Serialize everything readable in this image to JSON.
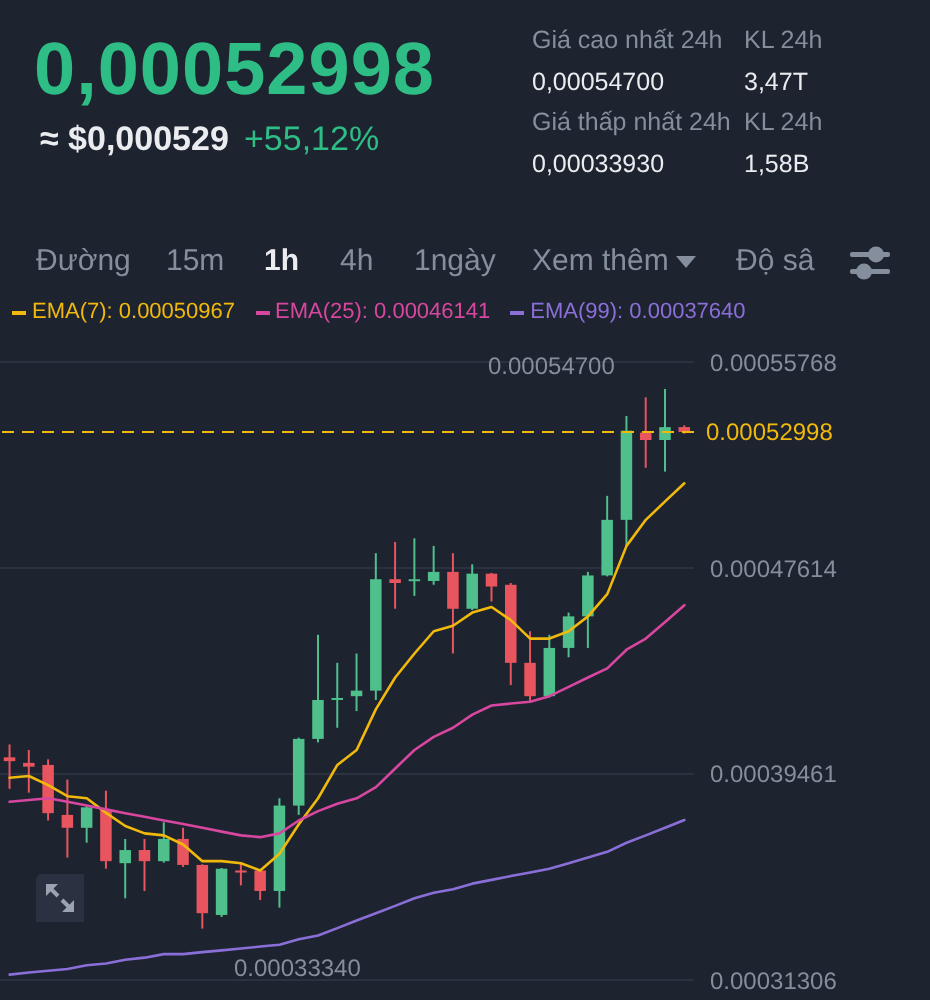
{
  "chart_data": {
    "type": "candlestick",
    "title": "0,00052998",
    "annotations": [
      "≈ $0,000529",
      "+55,12%",
      "Giá cao nhất 24h",
      "0,00054700",
      "KL 24h",
      "3,47T",
      "Giá thấp nhất 24h",
      "0,00033930",
      "KL 24h",
      "1,58B",
      "Đường",
      "15m",
      "1h",
      "4h",
      "1ngày",
      "Xem thêm",
      "Độ sâ",
      "0.00054700",
      "0.00033340"
    ],
    "categories": [
      null,
      null,
      null,
      null,
      null,
      null,
      null,
      null,
      null,
      null,
      null,
      null,
      null,
      null,
      null,
      null,
      null,
      null,
      null,
      null,
      null,
      null,
      null,
      null,
      null,
      null,
      null,
      null,
      null,
      null,
      null,
      null,
      null,
      null,
      null,
      null
    ],
    "ohlc": [
      [
        0.0004012,
        0.0004063,
        0.0003887,
        0.0003997
      ],
      [
        0.000399,
        0.0004041,
        0.0003872,
        0.0003975
      ],
      [
        0.0003982,
        0.0004004,
        0.0003762,
        0.0003791
      ],
      [
        0.0003784,
        0.0003924,
        0.0003615,
        0.0003733
      ],
      [
        0.0003733,
        0.0003821,
        0.0003674,
        0.0003814
      ],
      [
        0.0003806,
        0.000388,
        0.0003571,
        0.0003601
      ],
      [
        0.0003593,
        0.0003689,
        0.0003454,
        0.0003645
      ],
      [
        0.0003645,
        0.0003689,
        0.0003483,
        0.0003601
      ],
      [
        0.0003601,
        0.0003755,
        0.0003595,
        0.0003689
      ],
      [
        0.0003689,
        0.0003733,
        0.0003578,
        0.0003586
      ],
      [
        0.0003586,
        0.0003589,
        0.0003334,
        0.0003395
      ],
      [
        0.0003388,
        0.0003574,
        0.000338,
        0.0003571
      ],
      [
        0.0003564,
        0.0003593,
        0.0003505,
        0.0003556
      ],
      [
        0.0003564,
        0.0003568,
        0.0003447,
        0.0003483
      ],
      [
        0.0003483,
        0.000385,
        0.0003417,
        0.0003821
      ],
      [
        0.0003821,
        0.000409,
        0.0003784,
        0.0004085
      ],
      [
        0.0004085,
        0.0004497,
        0.0004071,
        0.0004239
      ],
      [
        0.0004239,
        0.0004386,
        0.0004129,
        0.0004247
      ],
      [
        0.0004254,
        0.0004423,
        0.0004195,
        0.0004276
      ],
      [
        0.0004276,
        0.000482,
        0.0004239,
        0.0004717
      ],
      [
        0.0004717,
        0.0004864,
        0.00046,
        0.0004702
      ],
      [
        0.000471,
        0.0004879,
        0.0004651,
        0.0004717
      ],
      [
        0.000471,
        0.0004849,
        0.0004695,
        0.0004746
      ],
      [
        0.0004746,
        0.000482,
        0.0004423,
        0.00046
      ],
      [
        0.00046,
        0.0004776,
        0.0004595,
        0.0004739
      ],
      [
        0.0004739,
        0.0004742,
        0.0004629,
        0.0004688
      ],
      [
        0.0004695,
        0.0004702,
        0.0004298,
        0.0004386
      ],
      [
        0.0004386,
        0.0004511,
        0.0004232,
        0.0004254
      ],
      [
        0.0004254,
        0.0004497,
        0.0004249,
        0.0004445
      ],
      [
        0.0004445,
        0.0004585,
        0.0004408,
        0.000457
      ],
      [
        0.000457,
        0.0004746,
        0.0004445,
        0.0004732
      ],
      [
        0.0004732,
        0.0005047,
        0.0004728,
        0.0004952
      ],
      [
        0.0004952,
        0.0005363,
        0.0004849,
        0.0005305
      ],
      [
        0.0005297,
        0.0005437,
        0.0005158,
        0.0005268
      ],
      [
        0.0005268,
        0.000547,
        0.0005143,
        0.0005319
      ],
      [
        0.0005319,
        0.0005326,
        0.0005293,
        0.00052998
      ]
    ],
    "colors": [
      "#e8555f",
      "#e8555f",
      "#e8555f",
      "#e8555f",
      "#4fbf8b",
      "#e8555f",
      "#4fbf8b",
      "#e8555f",
      "#4fbf8b",
      "#e8555f",
      "#e8555f",
      "#4fbf8b",
      "#e8555f",
      "#e8555f",
      "#4fbf8b",
      "#4fbf8b",
      "#4fbf8b",
      "#4fbf8b",
      "#4fbf8b",
      "#4fbf8b",
      "#e8555f",
      "#4fbf8b",
      "#4fbf8b",
      "#e8555f",
      "#4fbf8b",
      "#e8555f",
      "#e8555f",
      "#e8555f",
      "#4fbf8b",
      "#4fbf8b",
      "#4fbf8b",
      "#4fbf8b",
      "#4fbf8b",
      "#e8555f",
      "#4fbf8b",
      "#e8555f"
    ],
    "series": [
      {
        "type": "line",
        "name": "EMA(7): 0.00050967",
        "color": "#f0b90b",
        "values": [
          0.0003931,
          0.0003938,
          0.0003902,
          0.0003858,
          0.000385,
          0.0003792,
          0.000374,
          0.0003711,
          0.0003703,
          0.0003667,
          0.0003601,
          0.0003601,
          0.0003593,
          0.0003564,
          0.000363,
          0.0003747,
          0.000385,
          0.0003982,
          0.0004041,
          0.0004203,
          0.0004328,
          0.0004423,
          0.0004511,
          0.0004533,
          0.0004585,
          0.0004607,
          0.0004555,
          0.0004482,
          0.0004482,
          0.0004511,
          0.000457,
          0.0004658,
          0.0004849,
          0.0004952,
          0.0005025,
          0.00050967
        ]
      },
      {
        "type": "line",
        "name": "EMA(25): 0.00046141",
        "color": "#d8479f",
        "values": [
          0.0003836,
          0.0003843,
          0.000385,
          0.0003836,
          0.0003821,
          0.0003806,
          0.0003791,
          0.0003777,
          0.0003762,
          0.0003748,
          0.0003733,
          0.0003718,
          0.0003703,
          0.0003696,
          0.0003711,
          0.0003762,
          0.0003799,
          0.0003828,
          0.000385,
          0.0003894,
          0.0003968,
          0.0004041,
          0.0004093,
          0.0004129,
          0.0004181,
          0.0004217,
          0.0004225,
          0.0004232,
          0.0004254,
          0.0004291,
          0.0004328,
          0.0004364,
          0.0004438,
          0.0004482,
          0.0004548,
          0.00046141
        ]
      },
      {
        "type": "line",
        "name": "EMA(99): 0.00037640",
        "color": "#8b6fd8",
        "values": [
          0.0003152,
          0.000316,
          0.0003167,
          0.0003174,
          0.0003189,
          0.0003196,
          0.0003211,
          0.0003219,
          0.0003233,
          0.0003233,
          0.0003241,
          0.0003248,
          0.0003255,
          0.0003263,
          0.000327,
          0.0003292,
          0.0003307,
          0.0003336,
          0.0003366,
          0.0003395,
          0.0003424,
          0.0003454,
          0.0003476,
          0.000349,
          0.0003512,
          0.0003527,
          0.0003542,
          0.0003556,
          0.0003571,
          0.0003593,
          0.0003615,
          0.0003638,
          0.0003674,
          0.0003703,
          0.0003733,
          0.0003764
        ]
      }
    ],
    "ylim": [
      0.00031306,
      0.00055768
    ],
    "yticks": [
      0.00055768,
      0.00047614,
      0.00039461,
      0.00031306
    ],
    "ref_lines": [
      {
        "axis": "y",
        "value": 0.00052998,
        "label": "0.00052998",
        "color": "#f0b90b",
        "line_style": "dashed"
      }
    ],
    "grid": "y",
    "legend": "top",
    "tick_labels": "y",
    "marker": "none",
    "line_style": "solid"
  }
}
